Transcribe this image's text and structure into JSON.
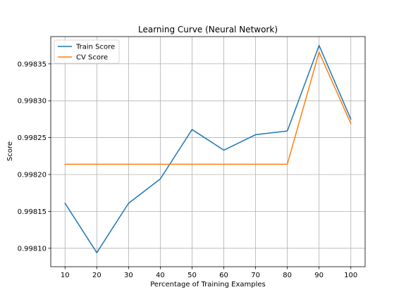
{
  "chart_data": {
    "type": "line",
    "title": "Learning Curve (Neural Network)",
    "xlabel": "Percentage of Training Examples",
    "ylabel": "Score",
    "x": [
      10,
      20,
      30,
      40,
      50,
      60,
      70,
      80,
      90,
      100
    ],
    "xlim": [
      5.5,
      104.5
    ],
    "ylim": [
      0.998075,
      0.998387
    ],
    "xticks": [
      "10",
      "20",
      "30",
      "40",
      "50",
      "60",
      "70",
      "80",
      "90",
      "100"
    ],
    "yticks": [
      {
        "value": 0.9981,
        "label": "0.99810"
      },
      {
        "value": 0.99815,
        "label": "0.99815"
      },
      {
        "value": 0.9982,
        "label": "0.99820"
      },
      {
        "value": 0.99825,
        "label": "0.99825"
      },
      {
        "value": 0.9983,
        "label": "0.99830"
      },
      {
        "value": 0.99835,
        "label": "0.99835"
      }
    ],
    "grid": true,
    "legend_position": "top-left",
    "series": [
      {
        "name": "Train Score",
        "color": "#1f77b4",
        "values": [
          0.998161,
          0.998094,
          0.998161,
          0.998194,
          0.998261,
          0.998233,
          0.998254,
          0.998259,
          0.998375,
          0.998275
        ]
      },
      {
        "name": "CV Score",
        "color": "#ff7f0e",
        "values": [
          0.998214,
          0.998214,
          0.998214,
          0.998214,
          0.998214,
          0.998214,
          0.998214,
          0.998214,
          0.998366,
          0.998269
        ]
      }
    ]
  }
}
